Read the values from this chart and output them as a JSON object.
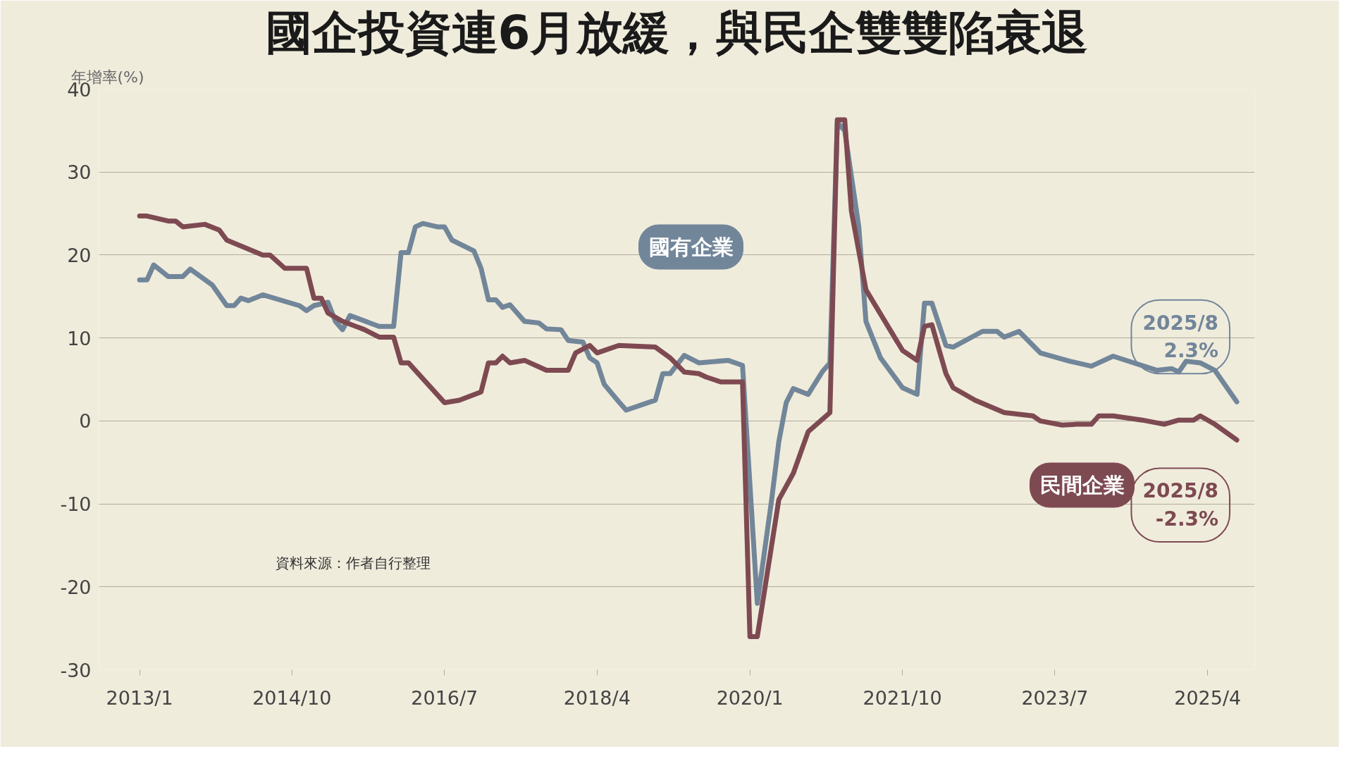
{
  "chart_data": {
    "type": "line",
    "title": "國企投資連6月放緩，與民企雙雙陷衰退",
    "ylabel": "年增率(%)",
    "xlim": [
      "2012-07-15",
      "2025-10-15"
    ],
    "ylim": [
      -30,
      40
    ],
    "yticks": [
      -30,
      -20,
      -10,
      0,
      10,
      20,
      30,
      40
    ],
    "xticks": [
      {
        "value": "2013-01",
        "label": "2013/1"
      },
      {
        "value": "2014-10",
        "label": "2014/10"
      },
      {
        "value": "2016-07",
        "label": "2016/7"
      },
      {
        "value": "2018-04",
        "label": "2018/4"
      },
      {
        "value": "2020-01",
        "label": "2020/1"
      },
      {
        "value": "2021-10",
        "label": "2021/10"
      },
      {
        "value": "2023-07",
        "label": "2023/7"
      },
      {
        "value": "2025-04",
        "label": "2025/4"
      }
    ],
    "grid": "y",
    "series": [
      {
        "name": "國有企業",
        "color": "#72869a",
        "x": [
          "2013-01",
          "2013-02",
          "2013-03",
          "2013-05",
          "2013-07",
          "2013-08",
          "2013-11",
          "2014-01",
          "2014-02",
          "2014-03",
          "2014-04",
          "2014-06",
          "2014-11",
          "2014-12",
          "2015-01",
          "2015-03",
          "2015-04",
          "2015-05",
          "2015-06",
          "2015-10",
          "2015-12",
          "2016-01",
          "2016-02",
          "2016-03",
          "2016-04",
          "2016-06",
          "2016-07",
          "2016-08",
          "2016-11",
          "2016-12",
          "2017-01",
          "2017-02",
          "2017-03",
          "2017-04",
          "2017-06",
          "2017-08",
          "2017-09",
          "2017-11",
          "2017-12",
          "2018-02",
          "2018-03",
          "2018-04",
          "2018-05",
          "2018-07",
          "2018-08",
          "2018-12",
          "2019-01",
          "2019-02",
          "2019-04",
          "2019-06",
          "2019-10",
          "2019-12",
          "2020-02",
          "2020-04",
          "2020-05",
          "2020-06",
          "2020-07",
          "2020-09",
          "2020-11",
          "2020-12",
          "2021-01",
          "2021-02",
          "2021-04",
          "2021-05",
          "2021-07",
          "2021-10",
          "2021-12",
          "2022-01",
          "2022-02",
          "2022-04",
          "2022-05",
          "2022-09",
          "2022-11",
          "2022-12",
          "2023-02",
          "2023-05",
          "2023-09",
          "2023-12",
          "2024-03",
          "2024-09",
          "2024-11",
          "2024-12",
          "2025-01",
          "2025-03",
          "2025-05",
          "2025-08"
        ],
        "values": [
          17.0,
          17.0,
          18.8,
          17.4,
          17.4,
          18.3,
          16.4,
          13.9,
          13.9,
          14.8,
          14.5,
          15.2,
          13.9,
          13.3,
          13.9,
          14.3,
          12.0,
          11.0,
          12.7,
          11.4,
          11.4,
          20.3,
          20.3,
          23.4,
          23.8,
          23.4,
          23.4,
          21.8,
          20.5,
          18.4,
          14.6,
          14.6,
          13.7,
          14.0,
          12.0,
          11.8,
          11.1,
          11.0,
          9.7,
          9.5,
          7.6,
          7.0,
          4.4,
          2.3,
          1.3,
          2.5,
          5.7,
          5.7,
          7.9,
          7.0,
          7.3,
          6.7,
          -22,
          -9.5,
          -2.5,
          2.2,
          3.9,
          3.2,
          6.0,
          7.0,
          36,
          35,
          23.4,
          12,
          7.6,
          4.0,
          3.2,
          14.2,
          14.2,
          9.1,
          8.9,
          10.8,
          10.8,
          10.1,
          10.8,
          8.2,
          7.2,
          6.6,
          7.8,
          6.1,
          6.3,
          5.9,
          7.2,
          7.0,
          6.1,
          2.3
        ]
      },
      {
        "name": "民間企業",
        "color": "#7e4a52",
        "x": [
          "2013-01",
          "2013-02",
          "2013-05",
          "2013-06",
          "2013-07",
          "2013-10",
          "2013-12",
          "2014-01",
          "2014-06",
          "2014-07",
          "2014-09",
          "2014-12",
          "2015-01",
          "2015-02",
          "2015-03",
          "2015-05",
          "2015-08",
          "2015-10",
          "2015-12",
          "2016-01",
          "2016-02",
          "2016-07",
          "2016-09",
          "2016-12",
          "2017-01",
          "2017-02",
          "2017-03",
          "2017-04",
          "2017-06",
          "2017-09",
          "2017-12",
          "2018-01",
          "2018-03",
          "2018-04",
          "2018-07",
          "2018-12",
          "2019-02",
          "2019-04",
          "2019-06",
          "2019-07",
          "2019-09",
          "2019-12",
          "2020-01",
          "2020-02",
          "2020-05",
          "2020-07",
          "2020-09",
          "2020-12",
          "2021-01",
          "2021-02",
          "2021-03",
          "2021-05",
          "2021-10",
          "2021-12",
          "2022-01",
          "2022-02",
          "2022-04",
          "2022-05",
          "2022-08",
          "2022-12",
          "2023-04",
          "2023-05",
          "2023-08",
          "2023-10",
          "2023-12",
          "2024-01",
          "2024-03",
          "2024-07",
          "2024-10",
          "2024-12",
          "2025-02",
          "2025-03",
          "2025-05",
          "2025-08"
        ],
        "values": [
          24.7,
          24.7,
          24.1,
          24.1,
          23.4,
          23.7,
          23.0,
          21.8,
          20.0,
          20.0,
          18.4,
          18.4,
          14.8,
          14.8,
          13.0,
          12.0,
          11.0,
          10.1,
          10.1,
          7.0,
          7.0,
          2.2,
          2.5,
          3.5,
          7.0,
          7.0,
          7.8,
          7.0,
          7.3,
          6.1,
          6.1,
          8.2,
          9.1,
          8.2,
          9.1,
          8.9,
          7.6,
          5.9,
          5.7,
          5.3,
          4.7,
          4.7,
          -26,
          -26,
          -9.5,
          -6.3,
          -1.3,
          1.0,
          36.3,
          36.3,
          25.3,
          15.8,
          8.5,
          7.3,
          11.4,
          11.6,
          5.7,
          4.0,
          2.5,
          1.0,
          0.6,
          0.0,
          -0.5,
          -0.4,
          -0.4,
          0.6,
          0.6,
          0.1,
          -0.4,
          0.1,
          0.1,
          0.6,
          -0.4,
          -2.3
        ]
      }
    ],
    "annotations": [
      {
        "text": "2025/8\n2.3%",
        "x": "2025-08",
        "y": 2.3
      },
      {
        "text": "2025/8\n-2.3%",
        "x": "2025-08",
        "y": -2.3
      },
      "資料來源：作者自行整理"
    ]
  }
}
